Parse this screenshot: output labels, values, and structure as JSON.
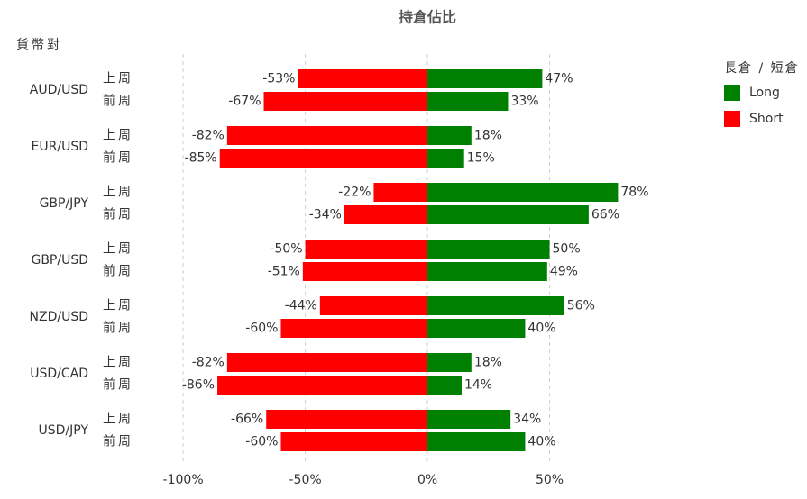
{
  "chart_data": {
    "type": "diverging-bar",
    "title": "持倉佔比",
    "y_label": "貨幣對",
    "legend_title": "長倉 / 短倉",
    "categories": [
      "AUD/USD",
      "EUR/USD",
      "GBP/JPY",
      "GBP/USD",
      "NZD/USD",
      "USD/CAD",
      "USD/JPY"
    ],
    "subcategories": [
      "上周",
      "前周"
    ],
    "series": [
      {
        "name": "Long",
        "color": "#008000",
        "values": [
          [
            47,
            33
          ],
          [
            18,
            15
          ],
          [
            78,
            66
          ],
          [
            50,
            49
          ],
          [
            56,
            40
          ],
          [
            18,
            14
          ],
          [
            34,
            40
          ]
        ],
        "value_labels": [
          [
            "47%",
            "33%"
          ],
          [
            "18%",
            "15%"
          ],
          [
            "78%",
            "66%"
          ],
          [
            "50%",
            "49%"
          ],
          [
            "56%",
            "40%"
          ],
          [
            "18%",
            "14%"
          ],
          [
            "34%",
            "40%"
          ]
        ]
      },
      {
        "name": "Short",
        "color": "#ff0000",
        "values": [
          [
            -53,
            -67
          ],
          [
            -82,
            -85
          ],
          [
            -22,
            -34
          ],
          [
            -50,
            -51
          ],
          [
            -44,
            -60
          ],
          [
            -82,
            -86
          ],
          [
            -66,
            -60
          ]
        ],
        "value_labels": [
          [
            "-53%",
            "-67%"
          ],
          [
            "-82%",
            "-85%"
          ],
          [
            "-22%",
            "-34%"
          ],
          [
            "-50%",
            "-51%"
          ],
          [
            "-44%",
            "-60%"
          ],
          [
            "-82%",
            "-86%"
          ],
          [
            "-66%",
            "-60%"
          ]
        ]
      }
    ],
    "xlim": [
      -110,
      100
    ],
    "xticks": [
      {
        "value": -100,
        "label": "-100%"
      },
      {
        "value": -50,
        "label": "-50%"
      },
      {
        "value": 0,
        "label": "0%"
      },
      {
        "value": 50,
        "label": "50%"
      }
    ],
    "grid": true
  }
}
